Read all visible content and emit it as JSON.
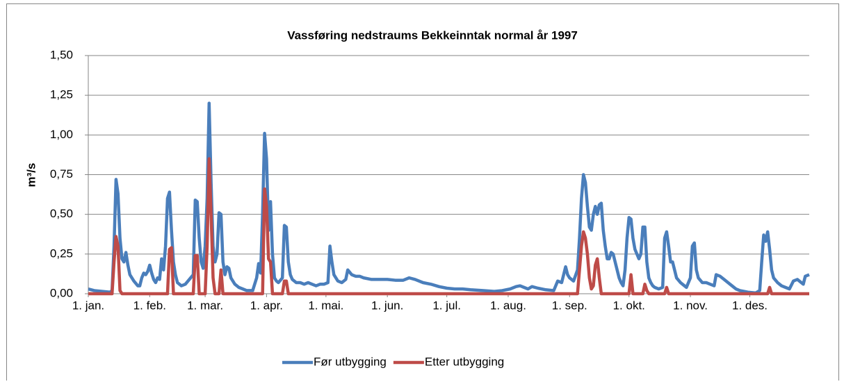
{
  "chart_data": {
    "type": "line",
    "title": "Vassføring nedstraums Bekkeinntak normal år 1997",
    "y_label": "m³/s",
    "xlim": [
      1,
      365
    ],
    "ylim": [
      0,
      1.5
    ],
    "xticks": [
      {
        "value": 1,
        "label": "1. jan."
      },
      {
        "value": 32,
        "label": "1. feb."
      },
      {
        "value": 60,
        "label": "1. mar."
      },
      {
        "value": 91,
        "label": "1. apr."
      },
      {
        "value": 121,
        "label": "1. mai."
      },
      {
        "value": 152,
        "label": "1. jun."
      },
      {
        "value": 182,
        "label": "1. jul."
      },
      {
        "value": 213,
        "label": "1. aug."
      },
      {
        "value": 244,
        "label": "1. sep."
      },
      {
        "value": 274,
        "label": "1. okt."
      },
      {
        "value": 305,
        "label": "1. nov."
      },
      {
        "value": 335,
        "label": "1. des."
      }
    ],
    "yticks": [
      {
        "value": 0,
        "label": "0,00"
      },
      {
        "value": 0.25,
        "label": "0,25"
      },
      {
        "value": 0.5,
        "label": "0,50"
      },
      {
        "value": 0.75,
        "label": "0,75"
      },
      {
        "value": 1,
        "label": "1,00"
      },
      {
        "value": 1.25,
        "label": "1,25"
      },
      {
        "value": 1.5,
        "label": "1,50"
      }
    ],
    "grid": true,
    "legend": "bottom",
    "series": [
      {
        "name": "Før utbygging",
        "color": "#4a7ebb",
        "x": [
          1,
          4,
          8,
          12,
          13,
          14,
          15,
          16,
          17,
          18,
          19,
          20,
          21,
          22,
          24,
          26,
          27,
          28,
          29,
          30,
          31,
          32,
          33,
          34,
          35,
          36,
          37,
          38,
          39,
          40,
          41,
          42,
          43,
          44,
          45,
          46,
          48,
          50,
          52,
          54,
          55,
          56,
          57,
          58,
          59,
          60,
          61,
          62,
          63,
          64,
          65,
          66,
          67,
          68,
          69,
          70,
          71,
          72,
          73,
          75,
          77,
          79,
          81,
          84,
          86,
          87,
          88,
          89,
          90,
          91,
          92,
          93,
          94,
          95,
          96,
          97,
          99,
          100,
          101,
          102,
          103,
          104,
          106,
          108,
          110,
          112,
          114,
          116,
          118,
          120,
          122,
          123,
          124,
          125,
          127,
          129,
          131,
          132,
          134,
          136,
          138,
          140,
          144,
          148,
          152,
          156,
          160,
          163,
          166,
          170,
          174,
          178,
          182,
          186,
          190,
          194,
          200,
          206,
          210,
          214,
          217,
          219,
          221,
          223,
          225,
          228,
          232,
          236,
          238,
          240,
          242,
          243,
          244,
          246,
          248,
          249,
          250,
          251,
          252,
          253,
          254,
          255,
          256,
          257,
          258,
          259,
          260,
          261,
          262,
          263,
          264,
          265,
          266,
          267,
          268,
          269,
          270,
          271,
          272,
          273,
          274,
          275,
          276,
          277,
          278,
          279,
          280,
          281,
          282,
          283,
          284,
          285,
          286,
          287,
          289,
          291,
          292,
          293,
          294,
          295,
          296,
          297,
          298,
          300,
          302,
          303,
          305,
          306,
          307,
          308,
          309,
          311,
          313,
          315,
          317,
          318,
          320,
          322,
          324,
          326,
          328,
          330,
          334,
          338,
          340,
          341,
          342,
          343,
          344,
          345,
          346,
          347,
          349,
          351,
          353,
          355,
          357,
          359,
          361,
          362,
          363,
          365
        ],
        "values": [
          0.03,
          0.02,
          0.015,
          0.01,
          0.02,
          0.3,
          0.72,
          0.63,
          0.35,
          0.22,
          0.2,
          0.26,
          0.18,
          0.12,
          0.08,
          0.05,
          0.05,
          0.1,
          0.13,
          0.12,
          0.14,
          0.18,
          0.13,
          0.09,
          0.07,
          0.1,
          0.09,
          0.22,
          0.15,
          0.3,
          0.6,
          0.64,
          0.4,
          0.2,
          0.12,
          0.07,
          0.05,
          0.06,
          0.09,
          0.12,
          0.59,
          0.58,
          0.35,
          0.2,
          0.16,
          0.3,
          0.6,
          1.2,
          0.7,
          0.3,
          0.2,
          0.25,
          0.51,
          0.5,
          0.2,
          0.12,
          0.17,
          0.16,
          0.1,
          0.06,
          0.04,
          0.03,
          0.02,
          0.02,
          0.1,
          0.19,
          0.13,
          0.5,
          1.01,
          0.85,
          0.4,
          0.58,
          0.25,
          0.1,
          0.08,
          0.07,
          0.1,
          0.43,
          0.42,
          0.2,
          0.12,
          0.09,
          0.07,
          0.07,
          0.06,
          0.07,
          0.06,
          0.05,
          0.06,
          0.06,
          0.07,
          0.3,
          0.2,
          0.12,
          0.08,
          0.07,
          0.09,
          0.15,
          0.12,
          0.11,
          0.11,
          0.1,
          0.09,
          0.09,
          0.09,
          0.085,
          0.085,
          0.1,
          0.09,
          0.07,
          0.06,
          0.045,
          0.035,
          0.03,
          0.03,
          0.025,
          0.02,
          0.015,
          0.02,
          0.03,
          0.045,
          0.05,
          0.04,
          0.03,
          0.045,
          0.035,
          0.025,
          0.02,
          0.08,
          0.07,
          0.17,
          0.12,
          0.1,
          0.08,
          0.15,
          0.35,
          0.6,
          0.75,
          0.7,
          0.55,
          0.42,
          0.4,
          0.5,
          0.55,
          0.5,
          0.56,
          0.57,
          0.4,
          0.3,
          0.22,
          0.22,
          0.26,
          0.25,
          0.2,
          0.15,
          0.1,
          0.07,
          0.05,
          0.15,
          0.35,
          0.48,
          0.47,
          0.35,
          0.28,
          0.25,
          0.22,
          0.25,
          0.42,
          0.42,
          0.2,
          0.1,
          0.07,
          0.05,
          0.04,
          0.03,
          0.04,
          0.35,
          0.39,
          0.3,
          0.2,
          0.2,
          0.15,
          0.1,
          0.07,
          0.05,
          0.04,
          0.1,
          0.3,
          0.32,
          0.15,
          0.1,
          0.07,
          0.07,
          0.06,
          0.05,
          0.12,
          0.11,
          0.09,
          0.07,
          0.05,
          0.03,
          0.02,
          0.01,
          0.005,
          0.02,
          0.2,
          0.37,
          0.33,
          0.39,
          0.28,
          0.15,
          0.1,
          0.07,
          0.05,
          0.04,
          0.03,
          0.08,
          0.09,
          0.07,
          0.06,
          0.11,
          0.12
        ]
      },
      {
        "name": "Etter utbygging",
        "color": "#be4b48",
        "x": [
          1,
          13,
          14,
          15,
          16,
          17,
          18,
          41,
          42,
          43,
          44,
          54,
          55,
          56,
          57,
          60,
          61,
          62,
          63,
          64,
          65,
          67,
          68,
          69,
          89,
          90,
          91,
          92,
          93,
          94,
          99,
          100,
          101,
          102,
          248,
          250,
          251,
          252,
          253,
          254,
          255,
          256,
          257,
          258,
          259,
          260,
          274,
          275,
          276,
          281,
          282,
          283,
          284,
          292,
          293,
          294,
          344,
          345,
          346,
          365
        ],
        "values": [
          0,
          0,
          0.2,
          0.36,
          0.3,
          0.02,
          0,
          0,
          0.28,
          0.29,
          0,
          0,
          0.24,
          0.24,
          0,
          0,
          0.3,
          0.85,
          0.5,
          0.1,
          0,
          0,
          0.15,
          0,
          0,
          0.66,
          0.55,
          0.22,
          0.2,
          0,
          0,
          0.08,
          0.08,
          0,
          0,
          0.3,
          0.39,
          0.35,
          0.25,
          0.1,
          0.03,
          0.05,
          0.18,
          0.22,
          0.1,
          0,
          0,
          0.12,
          0,
          0,
          0.06,
          0.02,
          0,
          0,
          0.04,
          0,
          0,
          0.04,
          0,
          0
        ]
      }
    ]
  }
}
